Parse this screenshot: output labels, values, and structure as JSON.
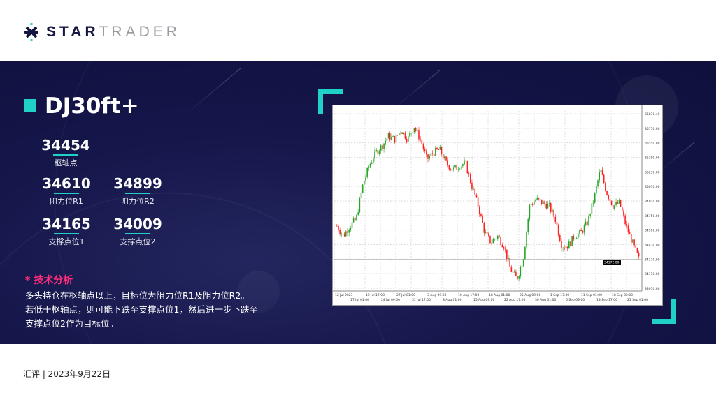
{
  "brand": {
    "logo_text_bold": "STAR",
    "logo_text_light": "TRADER",
    "accent": "#1fd1c6"
  },
  "instrument": {
    "title": "DJ30ft+"
  },
  "levels": {
    "pivot": {
      "value": "34454",
      "label": "枢轴点"
    },
    "r1": {
      "value": "34610",
      "label": "阻力位R1"
    },
    "r2": {
      "value": "34899",
      "label": "阻力位R2"
    },
    "s1": {
      "value": "34165",
      "label": "支撑点位1"
    },
    "s2": {
      "value": "34009",
      "label": "支撑点位2"
    }
  },
  "analysis": {
    "heading": "* 技术分析",
    "heading_color": "#ff2d7a",
    "lines": [
      "多头持仓在枢轴点以上，目标位为阻力位R1及阻力位R2。",
      "若低于枢轴点，则可能下跌至支撑点位1，然后进一步下跌至",
      "支撑点位2作为目标位。"
    ]
  },
  "footer": {
    "text": "汇评 | 2023年9月22日"
  },
  "chart_data": {
    "type": "candlestick",
    "up_color": "#26a626",
    "down_color": "#ff2020",
    "grid": true,
    "ylim": [
      33800,
      35900
    ],
    "closes": [
      34559,
      34443,
      34559,
      34637,
      35024,
      35257,
      35412,
      35489,
      35606,
      35567,
      35683,
      35567,
      35722,
      35567,
      35334,
      35412,
      35451,
      35296,
      35218,
      35257,
      35296,
      35024,
      34792,
      34482,
      34366,
      34443,
      34327,
      34056,
      33939,
      34172,
      34792,
      34869,
      34831,
      34792,
      34637,
      34327,
      34327,
      34443,
      34482,
      34598,
      34869,
      35218,
      34946,
      34792,
      34831,
      34559,
      34366,
      34172
    ],
    "y_ticks": [
      "35870.40",
      "35710.00",
      "35550.00",
      "35390.00",
      "35230.00",
      "35070.00",
      "34910.00",
      "34750.00",
      "34590.00",
      "34430.00",
      "34270.00",
      "34110.00",
      "33950.00"
    ],
    "current_price": "34172.00",
    "x_ticks": [
      "12 Jul 2023",
      "17 Jul 01:00",
      "19 Jul 17:00",
      "24 Jul 09:00",
      "27 Jul 01:00",
      "31 Jul 17:00",
      "3 Aug 09:00",
      "8 Aug 01:00",
      "10 Aug 17:00",
      "15 Aug 09:00",
      "18 Aug 01:00",
      "22 Aug 17:00",
      "25 Aug 09:00",
      "30 Aug 01:00",
      "1 Sep 17:00",
      "6 Sep 09:00",
      "11 Sep 01:00",
      "13 Sep 17:00",
      "18 Sep 09:00",
      "21 Sep 01:00"
    ]
  }
}
